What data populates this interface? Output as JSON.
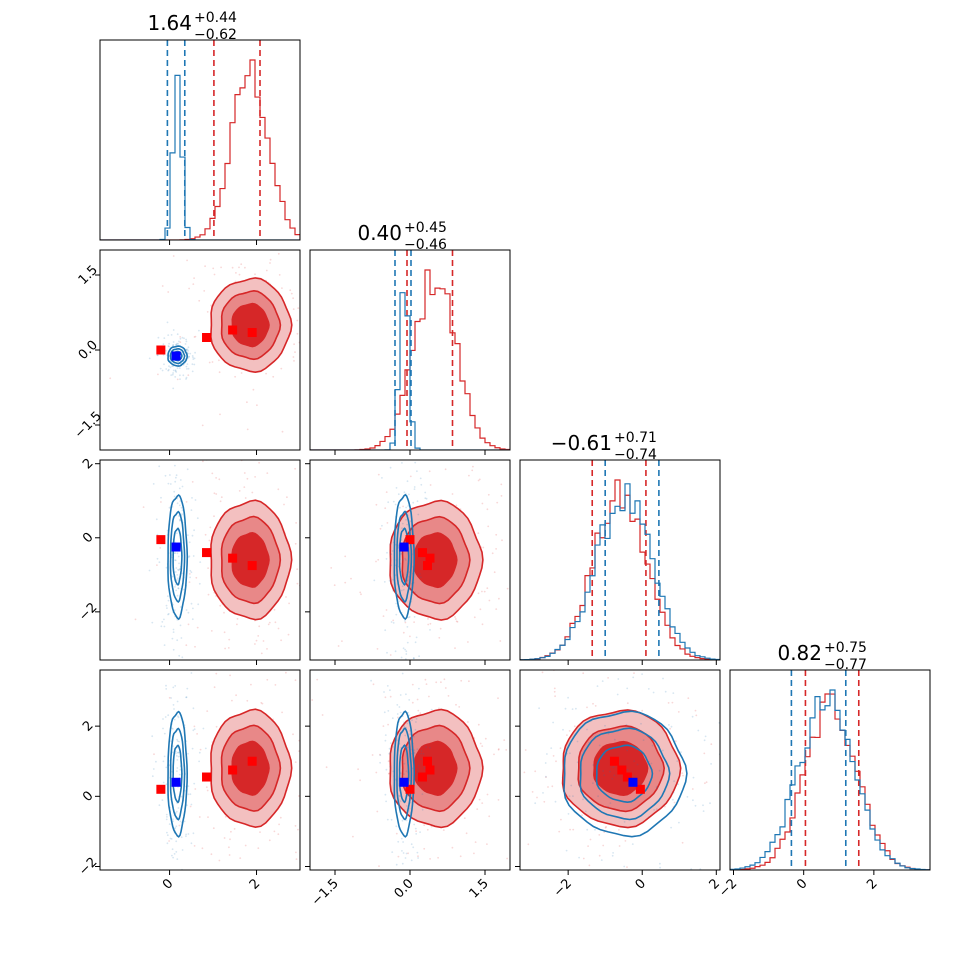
{
  "colors": {
    "red": "#d62728",
    "red_fill_light": "#f3c0c0",
    "red_fill_mid": "#e88888",
    "blue": "#1f77b4",
    "marker_red": "#ff0000",
    "marker_blue": "#0000ff"
  },
  "chart_data": {
    "type": "corner",
    "parameters": [
      {
        "index": 0,
        "title": {
          "median": "1.64",
          "plus": "+0.44",
          "minus": "−0.62"
        },
        "range": [
          -1.6,
          3.0
        ],
        "ticks": [
          0,
          2
        ],
        "tick_labels": [
          "0",
          "2"
        ]
      },
      {
        "index": 1,
        "title": {
          "median": "0.40",
          "plus": "+0.45",
          "minus": "−0.46"
        },
        "range": [
          -2.0,
          2.0
        ],
        "ticks": [
          -1.5,
          0.0,
          1.5
        ],
        "tick_labels": [
          "−1.5",
          "0.0",
          "1.5"
        ]
      },
      {
        "index": 2,
        "title": {
          "median": "−0.61",
          "plus": "+0.71",
          "minus": "−0.74"
        },
        "range": [
          -3.3,
          2.1
        ],
        "ticks": [
          -2,
          0,
          2
        ],
        "tick_labels": [
          "−2",
          "0",
          "2"
        ]
      },
      {
        "index": 3,
        "title": {
          "median": "0.82",
          "plus": "+0.75",
          "minus": "−0.77"
        },
        "range": [
          -2.1,
          3.6
        ],
        "ticks": [
          -2,
          0,
          2
        ],
        "tick_labels": [
          "−2",
          "0",
          "2"
        ]
      }
    ],
    "y_tick_overrides": {
      "3": {
        "ticks": [
          -2,
          0,
          2
        ],
        "tick_labels": [
          "−2",
          "0",
          "2"
        ]
      }
    },
    "series": [
      {
        "color_key": "red",
        "filled": true,
        "means": [
          1.85,
          0.5,
          -0.6,
          0.8
        ],
        "sigmas": [
          0.42,
          0.42,
          0.72,
          0.75
        ],
        "quantile_lines": [
          [
            1.02,
            2.08
          ],
          [
            -0.06,
            0.85
          ],
          [
            -1.35,
            0.1
          ],
          [
            0.05,
            1.57
          ]
        ],
        "markers": [
          [
            -0.2,
            0.0,
            -0.05,
            0.2
          ],
          [
            0.85,
            0.25,
            -0.4,
            0.55
          ],
          [
            1.45,
            0.4,
            -0.55,
            0.75
          ],
          [
            1.9,
            0.35,
            -0.75,
            1.0
          ]
        ]
      },
      {
        "color_key": "blue",
        "filled": false,
        "means": [
          0.18,
          -0.12,
          -0.5,
          0.65
        ],
        "sigmas": [
          0.1,
          0.09,
          0.75,
          0.8
        ],
        "quantile_lines": [
          [
            -0.05,
            0.35
          ],
          [
            -0.3,
            0.02
          ],
          [
            -1.0,
            0.45
          ],
          [
            -0.35,
            1.2
          ]
        ],
        "markers": [
          [
            0.15,
            -0.12,
            -0.25,
            0.4
          ]
        ]
      }
    ]
  }
}
